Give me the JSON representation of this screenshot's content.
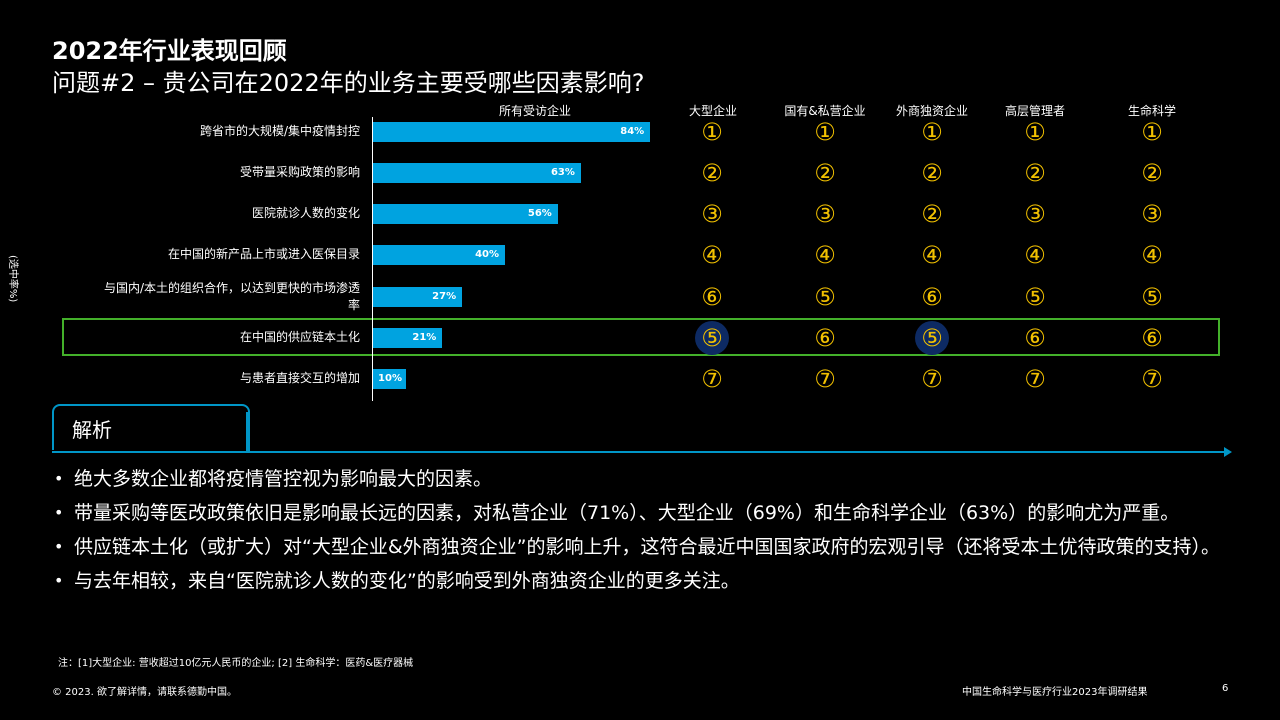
{
  "title": {
    "line1": "2022年行业表现回顾",
    "line2": "问题#2 – 贵公司在2022年的业务主要受哪些因素影响?"
  },
  "y_axis_note": "(选中率%)",
  "headers": {
    "all": "所有受访企业",
    "large": "大型企业",
    "soe_private": "国有&私营企业",
    "foreign": "外商独资企业",
    "senior": "高层管理者",
    "life": "生命科学"
  },
  "chart_data": {
    "type": "bar",
    "orientation": "horizontal",
    "title": "所有受访企业",
    "ylabel": "(选中率%)",
    "xlim": [
      0,
      100
    ],
    "categories": [
      "跨省市的大规模/集中疫情封控",
      "受带量采购政策的影响",
      "医院就诊人数的变化",
      "在中国的新产品上市或进入医保目录",
      "与国内/本土的组织合作，以达到更快的市场渗透率",
      "在中国的供应链本土化",
      "与患者直接交互的增加"
    ],
    "values": [
      84,
      63,
      56,
      40,
      27,
      21,
      10
    ],
    "value_labels": [
      "84%",
      "63%",
      "56%",
      "40%",
      "27%",
      "21%",
      "10%"
    ],
    "rank_columns": [
      {
        "key": "large",
        "ranks": [
          "①",
          "②",
          "③",
          "④",
          "⑥",
          "⑤",
          "⑦"
        ]
      },
      {
        "key": "soe_private",
        "ranks": [
          "①",
          "②",
          "③",
          "④",
          "⑤",
          "⑥",
          "⑦"
        ]
      },
      {
        "key": "foreign",
        "ranks": [
          "①",
          "②",
          "②",
          "④",
          "⑥",
          "⑤",
          "⑦"
        ]
      },
      {
        "key": "senior",
        "ranks": [
          "①",
          "②",
          "③",
          "④",
          "⑤",
          "⑥",
          "⑦"
        ]
      },
      {
        "key": "life",
        "ranks": [
          "①",
          "②",
          "③",
          "④",
          "⑤",
          "⑥",
          "⑦"
        ]
      }
    ],
    "highlighted_row": 5,
    "highlighted_ranks": [
      {
        "column": "large",
        "row": 5
      },
      {
        "column": "foreign",
        "row": 5
      }
    ]
  },
  "analysis": {
    "label": "解析",
    "bullets": [
      "绝大多数企业都将疫情管控视为影响最大的因素。",
      "带量采购等医改政策依旧是影响最长远的因素，对私营企业（71%）、大型企业（69%）和生命科学企业（63%）的影响尤为严重。",
      "供应链本土化（或扩大）对“大型企业&外商独资企业”的影响上升，这符合最近中国国家政府的宏观引导（还将受本土优待政策的支持）。",
      "与去年相较，来自“医院就诊人数的变化”的影响受到外商独资企业的更多关注。"
    ]
  },
  "note": "注：[1]大型企业: 营收超过10亿元人民币的企业;  [2] 生命科学：医药&医疗器械",
  "footer": {
    "copyright": "© 2023. 欲了解详情，请联系德勤中国。",
    "report": "中国生命科学与医疗行业2023年调研结果",
    "page": "6"
  },
  "colors": {
    "bar": "#00a3e0",
    "rank": "#f2c100",
    "highlight_border": "#43b02a",
    "accent": "#0096c7"
  }
}
